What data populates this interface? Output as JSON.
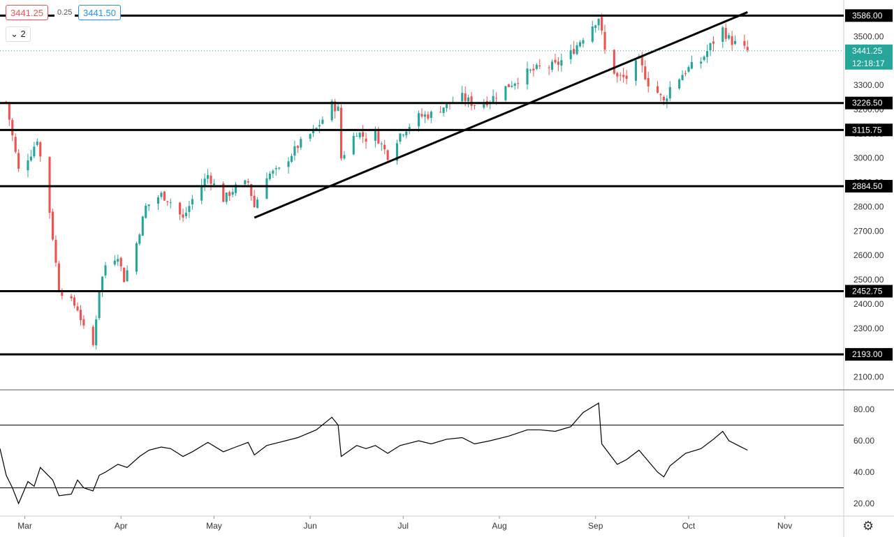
{
  "toolbar": {
    "sell_price": "3441.25",
    "spread": "0.25",
    "buy_price": "3441.50",
    "series_count": "2"
  },
  "price_scale": {
    "current_price": "3441.25",
    "countdown": "12:18:17",
    "accent_color": "#26a69a"
  },
  "colors": {
    "up": "#26a69a",
    "down": "#ef5350",
    "line": "#000000"
  },
  "icons": {
    "series_toggle": "chevron-down-icon",
    "settings": "gear-icon"
  },
  "chart_data": [
    {
      "type": "candlestick",
      "title": "",
      "ylim": [
        2050,
        3650
      ],
      "yticks": [
        2100,
        2200,
        2300,
        2400,
        2500,
        2600,
        2700,
        2800,
        2900,
        3000,
        3100,
        3200,
        3300,
        3400,
        3500
      ],
      "xticks": [
        {
          "label": "Mar",
          "date": "2020-03-01"
        },
        {
          "label": "Apr",
          "date": "2020-04-01"
        },
        {
          "label": "May",
          "date": "2020-05-01"
        },
        {
          "label": "Jun",
          "date": "2020-06-01"
        },
        {
          "label": "Jul",
          "date": "2020-07-01"
        },
        {
          "label": "Aug",
          "date": "2020-08-01"
        },
        {
          "label": "Sep",
          "date": "2020-09-01"
        },
        {
          "label": "Oct",
          "date": "2020-10-01"
        },
        {
          "label": "Nov",
          "date": "2020-11-01"
        }
      ],
      "xlim": [
        "2020-02-22",
        "2020-11-20"
      ],
      "horizontal_levels": [
        3586.0,
        3226.5,
        3115.75,
        2884.5,
        2452.75,
        2193.0
      ],
      "trendline": {
        "start": [
          "2020-05-14",
          2755
        ],
        "end": [
          "2020-10-20",
          3600
        ]
      },
      "close_path": [
        [
          "2020-02-24",
          3230
        ],
        [
          "2020-02-28",
          2950
        ],
        [
          "2020-03-03",
          3020
        ],
        [
          "2020-03-05",
          3080
        ],
        [
          "2020-03-09",
          2780
        ],
        [
          "2020-03-12",
          2460
        ],
        [
          "2020-03-16",
          2410
        ],
        [
          "2020-03-18",
          2380
        ],
        [
          "2020-03-20",
          2300
        ],
        [
          "2020-03-23",
          2230
        ],
        [
          "2020-03-25",
          2460
        ],
        [
          "2020-03-27",
          2560
        ],
        [
          "2020-03-31",
          2600
        ],
        [
          "2020-04-02",
          2500
        ],
        [
          "2020-04-06",
          2650
        ],
        [
          "2020-04-09",
          2800
        ],
        [
          "2020-04-14",
          2850
        ],
        [
          "2020-04-17",
          2820
        ],
        [
          "2020-04-21",
          2750
        ],
        [
          "2020-04-24",
          2830
        ],
        [
          "2020-04-29",
          2930
        ],
        [
          "2020-05-04",
          2830
        ],
        [
          "2020-05-08",
          2880
        ],
        [
          "2020-05-12",
          2900
        ],
        [
          "2020-05-14",
          2800
        ],
        [
          "2020-05-18",
          2930
        ],
        [
          "2020-05-22",
          2950
        ],
        [
          "2020-05-28",
          3050
        ],
        [
          "2020-06-03",
          3120
        ],
        [
          "2020-06-08",
          3220
        ],
        [
          "2020-06-10",
          3200
        ],
        [
          "2020-06-11",
          3000
        ],
        [
          "2020-06-16",
          3110
        ],
        [
          "2020-06-19",
          3080
        ],
        [
          "2020-06-22",
          3100
        ],
        [
          "2020-06-26",
          3010
        ],
        [
          "2020-06-30",
          3100
        ],
        [
          "2020-07-06",
          3170
        ],
        [
          "2020-07-10",
          3180
        ],
        [
          "2020-07-15",
          3220
        ],
        [
          "2020-07-20",
          3250
        ],
        [
          "2020-07-24",
          3220
        ],
        [
          "2020-07-29",
          3240
        ],
        [
          "2020-08-04",
          3300
        ],
        [
          "2020-08-10",
          3350
        ],
        [
          "2020-08-14",
          3370
        ],
        [
          "2020-08-19",
          3380
        ],
        [
          "2020-08-24",
          3430
        ],
        [
          "2020-08-28",
          3500
        ],
        [
          "2020-09-02",
          3580
        ],
        [
          "2020-09-04",
          3440
        ],
        [
          "2020-09-08",
          3330
        ],
        [
          "2020-09-11",
          3330
        ],
        [
          "2020-09-15",
          3400
        ],
        [
          "2020-09-18",
          3310
        ],
        [
          "2020-09-21",
          3270
        ],
        [
          "2020-09-23",
          3230
        ],
        [
          "2020-09-25",
          3290
        ],
        [
          "2020-09-30",
          3360
        ],
        [
          "2020-10-05",
          3400
        ],
        [
          "2020-10-09",
          3480
        ],
        [
          "2020-10-12",
          3530
        ],
        [
          "2020-10-14",
          3490
        ],
        [
          "2020-10-17",
          3460
        ],
        [
          "2020-10-20",
          3441
        ]
      ]
    },
    {
      "type": "line",
      "title": "",
      "ylim": [
        12,
        92
      ],
      "yticks": [
        20,
        40,
        60,
        80
      ],
      "levels": [
        70,
        30
      ],
      "series": [
        {
          "points": [
            [
              "2020-02-22",
              55
            ],
            [
              "2020-02-24",
              38
            ],
            [
              "2020-02-26",
              30
            ],
            [
              "2020-02-28",
              20
            ],
            [
              "2020-03-02",
              34
            ],
            [
              "2020-03-04",
              31
            ],
            [
              "2020-03-06",
              43
            ],
            [
              "2020-03-10",
              35
            ],
            [
              "2020-03-12",
              25
            ],
            [
              "2020-03-16",
              26
            ],
            [
              "2020-03-18",
              35
            ],
            [
              "2020-03-20",
              30
            ],
            [
              "2020-03-23",
              28
            ],
            [
              "2020-03-25",
              38
            ],
            [
              "2020-03-27",
              40
            ],
            [
              "2020-03-31",
              45
            ],
            [
              "2020-04-03",
              43
            ],
            [
              "2020-04-07",
              50
            ],
            [
              "2020-04-10",
              54
            ],
            [
              "2020-04-14",
              56
            ],
            [
              "2020-04-17",
              55
            ],
            [
              "2020-04-21",
              50
            ],
            [
              "2020-04-24",
              53
            ],
            [
              "2020-04-29",
              59
            ],
            [
              "2020-05-04",
              53
            ],
            [
              "2020-05-08",
              56
            ],
            [
              "2020-05-12",
              59
            ],
            [
              "2020-05-14",
              51
            ],
            [
              "2020-05-18",
              57
            ],
            [
              "2020-05-22",
              59
            ],
            [
              "2020-05-28",
              62
            ],
            [
              "2020-06-03",
              67
            ],
            [
              "2020-06-08",
              75
            ],
            [
              "2020-06-10",
              70
            ],
            [
              "2020-06-11",
              50
            ],
            [
              "2020-06-16",
              57
            ],
            [
              "2020-06-19",
              55
            ],
            [
              "2020-06-22",
              57
            ],
            [
              "2020-06-26",
              52
            ],
            [
              "2020-06-30",
              57
            ],
            [
              "2020-07-06",
              60
            ],
            [
              "2020-07-10",
              58
            ],
            [
              "2020-07-15",
              61
            ],
            [
              "2020-07-20",
              62
            ],
            [
              "2020-07-24",
              58
            ],
            [
              "2020-07-29",
              60
            ],
            [
              "2020-08-04",
              63
            ],
            [
              "2020-08-10",
              67
            ],
            [
              "2020-08-14",
              67
            ],
            [
              "2020-08-19",
              66
            ],
            [
              "2020-08-24",
              69
            ],
            [
              "2020-08-28",
              78
            ],
            [
              "2020-09-02",
              84
            ],
            [
              "2020-09-03",
              58
            ],
            [
              "2020-09-08",
              45
            ],
            [
              "2020-09-11",
              48
            ],
            [
              "2020-09-15",
              54
            ],
            [
              "2020-09-18",
              47
            ],
            [
              "2020-09-21",
              40
            ],
            [
              "2020-09-23",
              37
            ],
            [
              "2020-09-25",
              44
            ],
            [
              "2020-09-30",
              52
            ],
            [
              "2020-10-05",
              55
            ],
            [
              "2020-10-09",
              61
            ],
            [
              "2020-10-12",
              66
            ],
            [
              "2020-10-14",
              60
            ],
            [
              "2020-10-17",
              57
            ],
            [
              "2020-10-20",
              54
            ]
          ]
        }
      ]
    }
  ]
}
